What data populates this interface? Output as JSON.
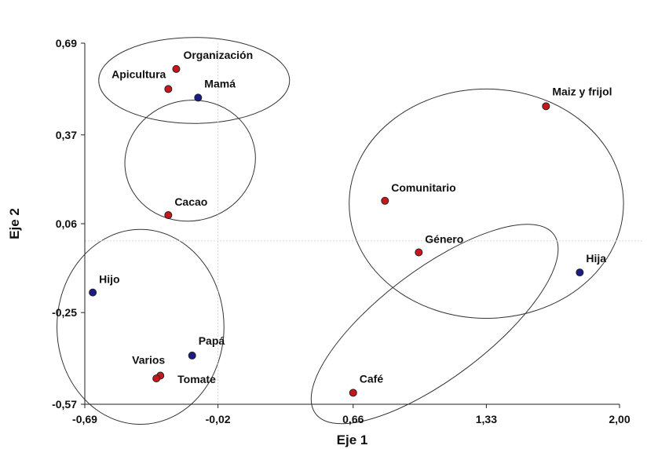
{
  "chart_data": {
    "type": "scatter",
    "xlabel": "Eje 1",
    "ylabel": "Eje 2",
    "xlim": [
      -0.69,
      2.0
    ],
    "ylim": [
      -0.57,
      0.69
    ],
    "x_ticks": [
      {
        "value": -0.69,
        "label": "-0,69"
      },
      {
        "value": -0.02,
        "label": "-0,02"
      },
      {
        "value": 0.66,
        "label": "0,66"
      },
      {
        "value": 1.33,
        "label": "1,33"
      },
      {
        "value": 2.0,
        "label": "2,00"
      }
    ],
    "y_ticks": [
      {
        "value": 0.69,
        "label": "0,69"
      },
      {
        "value": 0.37,
        "label": "0,37"
      },
      {
        "value": 0.06,
        "label": "0,06"
      },
      {
        "value": -0.25,
        "label": "-0,25"
      },
      {
        "value": -0.57,
        "label": "-0,57"
      }
    ],
    "reference_lines": {
      "x": -0.02,
      "y": 0.0
    },
    "points": [
      {
        "label": "Organización",
        "x": -0.23,
        "y": 0.6,
        "group": "red",
        "label_pos": "above-right"
      },
      {
        "label": "Apicultura",
        "x": -0.27,
        "y": 0.53,
        "group": "red",
        "label_pos": "above-left"
      },
      {
        "label": "Mamá",
        "x": -0.12,
        "y": 0.5,
        "group": "blue",
        "label_pos": "above-right"
      },
      {
        "label": "Cacao",
        "x": -0.27,
        "y": 0.09,
        "group": "red",
        "label_pos": "above-right"
      },
      {
        "label": "Hijo",
        "x": -0.65,
        "y": -0.18,
        "group": "blue",
        "label_pos": "above-right"
      },
      {
        "label": "Papá",
        "x": -0.15,
        "y": -0.4,
        "group": "blue",
        "label_pos": "above-right"
      },
      {
        "label": "Varios",
        "x": -0.31,
        "y": -0.47,
        "group": "red",
        "label_pos": "above-left"
      },
      {
        "label": "Tomate",
        "x": -0.33,
        "y": -0.48,
        "group": "red",
        "label_pos": "below-right"
      },
      {
        "label": "Comunitario",
        "x": 0.82,
        "y": 0.14,
        "group": "red",
        "label_pos": "above-right"
      },
      {
        "label": "Género",
        "x": 0.99,
        "y": -0.04,
        "group": "red",
        "label_pos": "above-right"
      },
      {
        "label": "Maiz y frijol",
        "x": 1.63,
        "y": 0.47,
        "group": "red",
        "label_pos": "above-right"
      },
      {
        "label": "Hija",
        "x": 1.8,
        "y": -0.11,
        "group": "blue",
        "label_pos": "above-right"
      },
      {
        "label": "Café",
        "x": 0.66,
        "y": -0.53,
        "group": "red",
        "label_pos": "above-right"
      }
    ],
    "ellipses": [
      {
        "cx": -0.14,
        "cy": 0.56,
        "rx": 0.48,
        "ry": 0.15,
        "rotation": 0
      },
      {
        "cx": -0.16,
        "cy": 0.28,
        "rx": 0.33,
        "ry": 0.21,
        "rotation": -14
      },
      {
        "cx": -0.41,
        "cy": -0.3,
        "rx": 0.42,
        "ry": 0.34,
        "rotation": 0
      },
      {
        "cx": 1.33,
        "cy": 0.13,
        "rx": 0.69,
        "ry": 0.4,
        "rotation": 0
      },
      {
        "cx": 1.07,
        "cy": -0.29,
        "rx": 0.75,
        "ry": 0.19,
        "rotation": -37
      }
    ],
    "colors": {
      "red": "#c8161d",
      "blue": "#1b1b8a",
      "grid": "#d8d8d8",
      "ellipse": "#333333",
      "axis": "#222222"
    }
  }
}
